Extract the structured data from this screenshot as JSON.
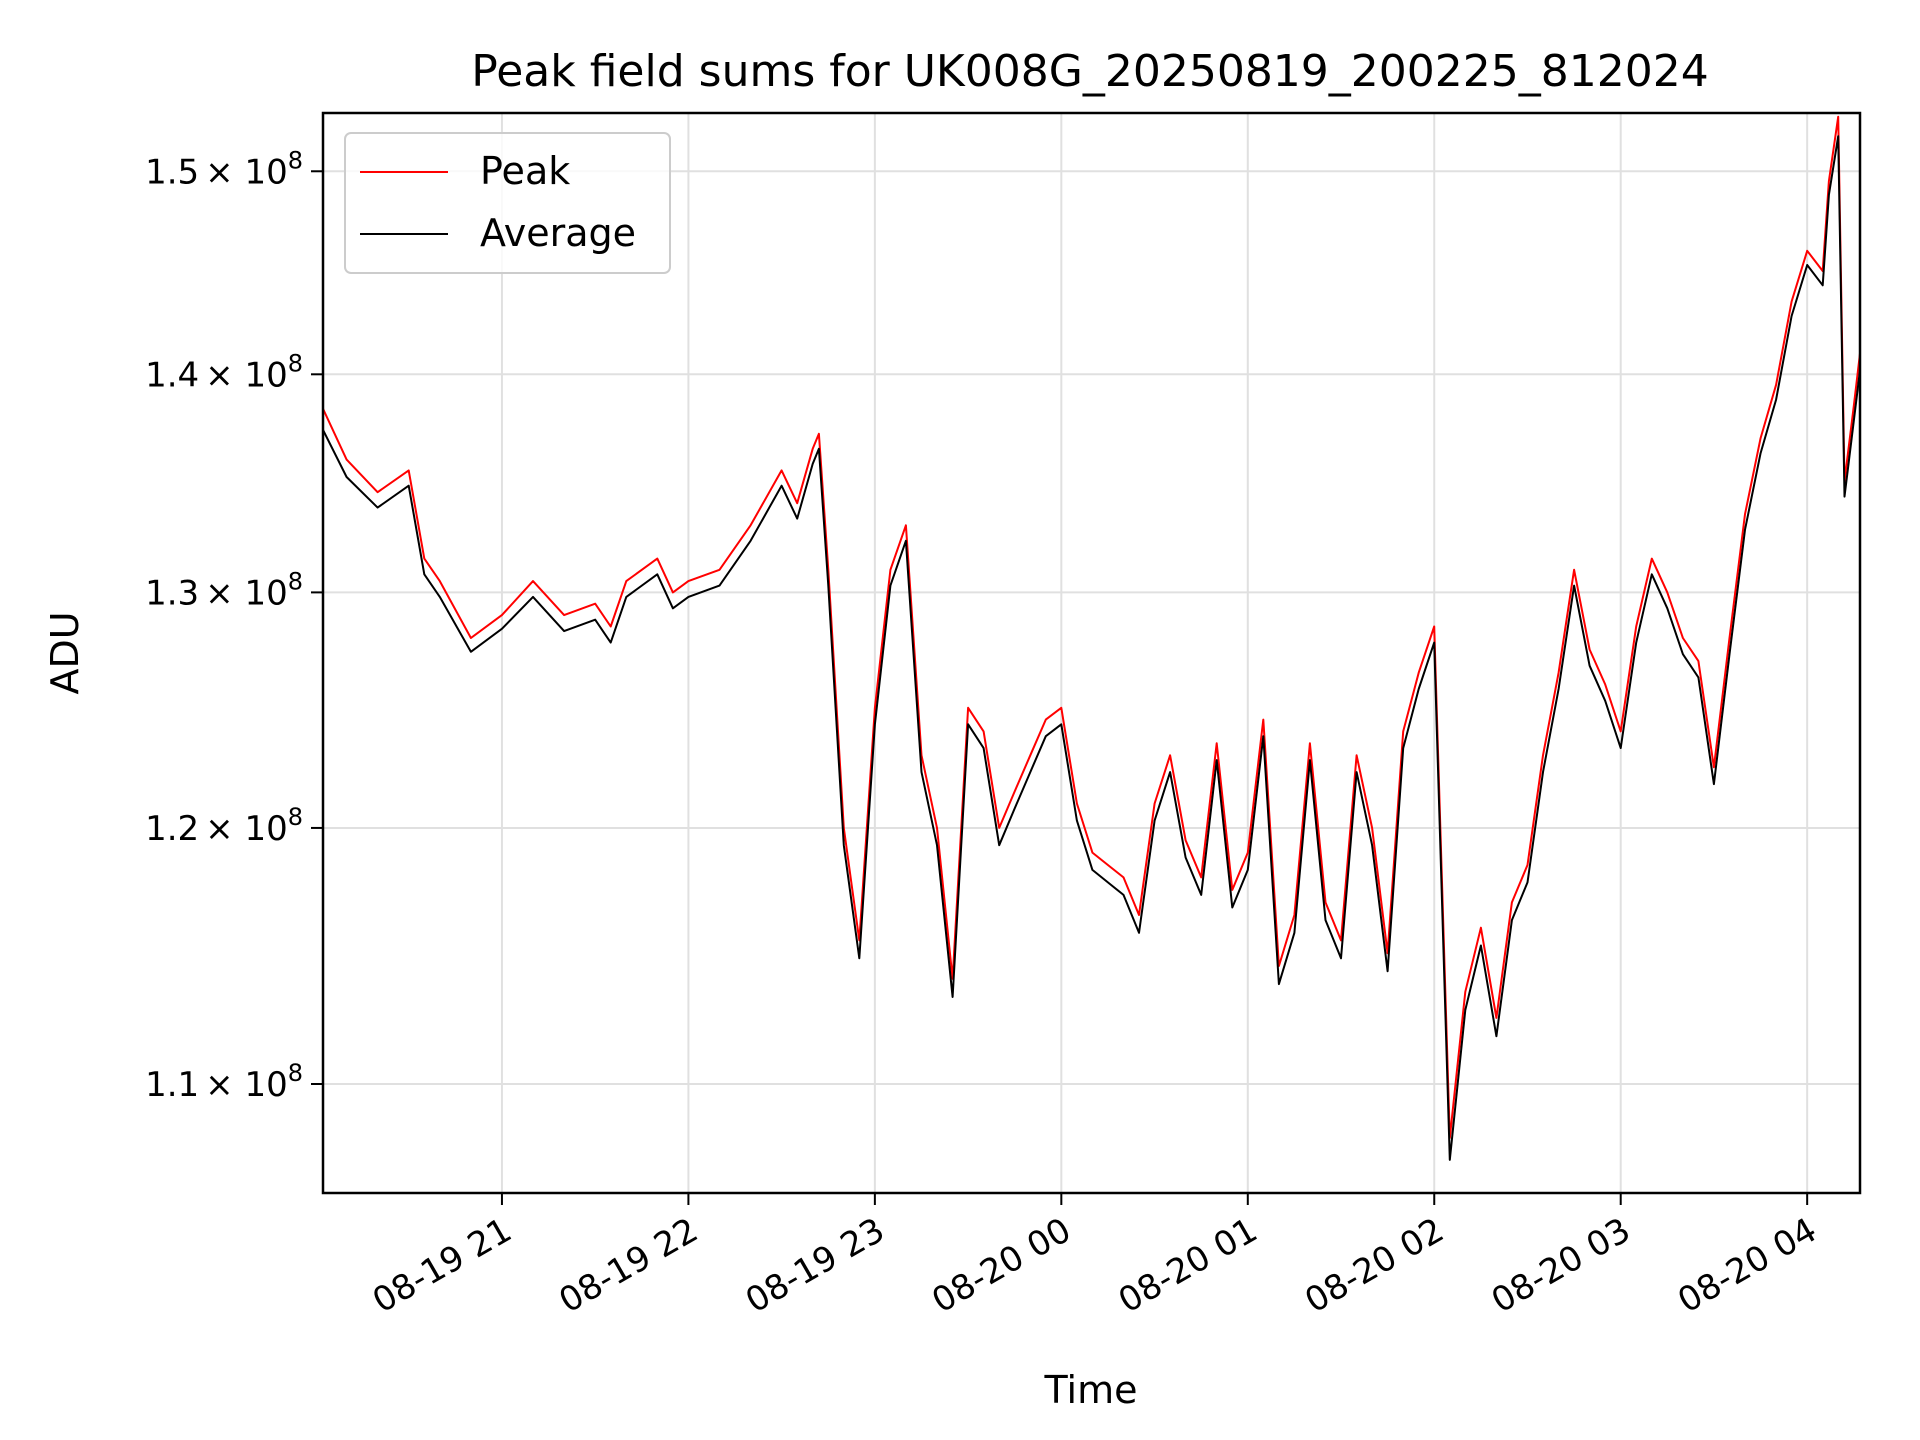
{
  "chart_data": {
    "type": "line",
    "title": "Peak field sums for UK008G_20250819_200225_812024",
    "xlabel": "Time",
    "ylabel": "ADU",
    "x_range": [
      "2025-08-19 20:02:25",
      "2025-08-20 04:17:00"
    ],
    "ylim": [
      106000000,
      153000000
    ],
    "y_scale": "log",
    "grid": true,
    "legend_placement": "upper-left",
    "x_ticks": [
      {
        "t": "2025-08-19 21:00",
        "label": "08-19 21"
      },
      {
        "t": "2025-08-19 22:00",
        "label": "08-19 22"
      },
      {
        "t": "2025-08-19 23:00",
        "label": "08-19 23"
      },
      {
        "t": "2025-08-20 00:00",
        "label": "08-20 00"
      },
      {
        "t": "2025-08-20 01:00",
        "label": "08-20 01"
      },
      {
        "t": "2025-08-20 02:00",
        "label": "08-20 02"
      },
      {
        "t": "2025-08-20 03:00",
        "label": "08-20 03"
      },
      {
        "t": "2025-08-20 04:00",
        "label": "08-20 04"
      }
    ],
    "y_ticks": [
      {
        "value": 110000000,
        "mantissa": "1.1",
        "base": "× 10",
        "exp": "8"
      },
      {
        "value": 120000000,
        "mantissa": "1.2",
        "base": "× 10",
        "exp": "8"
      },
      {
        "value": 130000000,
        "mantissa": "1.3",
        "base": "× 10",
        "exp": "8"
      },
      {
        "value": 140000000,
        "mantissa": "1.4",
        "base": "× 10",
        "exp": "8"
      },
      {
        "value": 150000000,
        "mantissa": "1.5",
        "base": "× 10",
        "exp": "8"
      }
    ],
    "series": [
      {
        "name": "Peak",
        "color": "#ff0000",
        "x": [
          "2025-08-19 20:02",
          "2025-08-19 20:10",
          "2025-08-19 20:20",
          "2025-08-19 20:30",
          "2025-08-19 20:35",
          "2025-08-19 20:40",
          "2025-08-19 20:50",
          "2025-08-19 21:00",
          "2025-08-19 21:10",
          "2025-08-19 21:20",
          "2025-08-19 21:30",
          "2025-08-19 21:35",
          "2025-08-19 21:40",
          "2025-08-19 21:50",
          "2025-08-19 21:55",
          "2025-08-19 22:00",
          "2025-08-19 22:10",
          "2025-08-19 22:20",
          "2025-08-19 22:30",
          "2025-08-19 22:35",
          "2025-08-19 22:40",
          "2025-08-19 22:42",
          "2025-08-19 22:45",
          "2025-08-19 22:50",
          "2025-08-19 22:55",
          "2025-08-19 23:00",
          "2025-08-19 23:05",
          "2025-08-19 23:10",
          "2025-08-19 23:15",
          "2025-08-19 23:20",
          "2025-08-19 23:25",
          "2025-08-19 23:30",
          "2025-08-19 23:35",
          "2025-08-19 23:40",
          "2025-08-19 23:45",
          "2025-08-19 23:50",
          "2025-08-19 23:55",
          "2025-08-20 00:00",
          "2025-08-20 00:05",
          "2025-08-20 00:10",
          "2025-08-20 00:15",
          "2025-08-20 00:20",
          "2025-08-20 00:25",
          "2025-08-20 00:30",
          "2025-08-20 00:35",
          "2025-08-20 00:40",
          "2025-08-20 00:45",
          "2025-08-20 00:50",
          "2025-08-20 00:55",
          "2025-08-20 01:00",
          "2025-08-20 01:05",
          "2025-08-20 01:10",
          "2025-08-20 01:15",
          "2025-08-20 01:20",
          "2025-08-20 01:25",
          "2025-08-20 01:30",
          "2025-08-20 01:35",
          "2025-08-20 01:40",
          "2025-08-20 01:45",
          "2025-08-20 01:50",
          "2025-08-20 01:55",
          "2025-08-20 02:00",
          "2025-08-20 02:05",
          "2025-08-20 02:10",
          "2025-08-20 02:15",
          "2025-08-20 02:20",
          "2025-08-20 02:25",
          "2025-08-20 02:30",
          "2025-08-20 02:35",
          "2025-08-20 02:40",
          "2025-08-20 02:45",
          "2025-08-20 02:50",
          "2025-08-20 02:55",
          "2025-08-20 03:00",
          "2025-08-20 03:05",
          "2025-08-20 03:10",
          "2025-08-20 03:15",
          "2025-08-20 03:20",
          "2025-08-20 03:25",
          "2025-08-20 03:30",
          "2025-08-20 03:35",
          "2025-08-20 03:40",
          "2025-08-20 03:45",
          "2025-08-20 03:50",
          "2025-08-20 03:55",
          "2025-08-20 04:00",
          "2025-08-20 04:05",
          "2025-08-20 04:07",
          "2025-08-20 04:10",
          "2025-08-20 04:12",
          "2025-08-20 04:15",
          "2025-08-20 04:17"
        ],
        "values": [
          138500000,
          136000000,
          134500000,
          135500000,
          131500000,
          130500000,
          128000000,
          129000000,
          130500000,
          129000000,
          129500000,
          128500000,
          130500000,
          131500000,
          130000000,
          130500000,
          131000000,
          133000000,
          135500000,
          134000000,
          136500000,
          137200000,
          131000000,
          120000000,
          115500000,
          125000000,
          131000000,
          133000000,
          123000000,
          120000000,
          114000000,
          125000000,
          124000000,
          120000000,
          121500000,
          123000000,
          124500000,
          125000000,
          121000000,
          119000000,
          118500000,
          118000000,
          116500000,
          121000000,
          123000000,
          119500000,
          118000000,
          123500000,
          117500000,
          119000000,
          124500000,
          114500000,
          116500000,
          123500000,
          117000000,
          115500000,
          123000000,
          120000000,
          115000000,
          124000000,
          126500000,
          128500000,
          108000000,
          113500000,
          116000000,
          112500000,
          117000000,
          118500000,
          123000000,
          126500000,
          131000000,
          127500000,
          126000000,
          124000000,
          128500000,
          131500000,
          130000000,
          128000000,
          127000000,
          122500000,
          128000000,
          133500000,
          137000000,
          139500000,
          143500000,
          146000000,
          145000000,
          149500000,
          152800000,
          135000000,
          138500000,
          141000000
        ]
      },
      {
        "name": "Average",
        "color": "#000000",
        "x": [
          "2025-08-19 20:02",
          "2025-08-19 20:10",
          "2025-08-19 20:20",
          "2025-08-19 20:30",
          "2025-08-19 20:35",
          "2025-08-19 20:40",
          "2025-08-19 20:50",
          "2025-08-19 21:00",
          "2025-08-19 21:10",
          "2025-08-19 21:20",
          "2025-08-19 21:30",
          "2025-08-19 21:35",
          "2025-08-19 21:40",
          "2025-08-19 21:50",
          "2025-08-19 21:55",
          "2025-08-19 22:00",
          "2025-08-19 22:10",
          "2025-08-19 22:20",
          "2025-08-19 22:30",
          "2025-08-19 22:35",
          "2025-08-19 22:40",
          "2025-08-19 22:42",
          "2025-08-19 22:45",
          "2025-08-19 22:50",
          "2025-08-19 22:55",
          "2025-08-19 23:00",
          "2025-08-19 23:05",
          "2025-08-19 23:10",
          "2025-08-19 23:15",
          "2025-08-19 23:20",
          "2025-08-19 23:25",
          "2025-08-19 23:30",
          "2025-08-19 23:35",
          "2025-08-19 23:40",
          "2025-08-19 23:45",
          "2025-08-19 23:50",
          "2025-08-19 23:55",
          "2025-08-20 00:00",
          "2025-08-20 00:05",
          "2025-08-20 00:10",
          "2025-08-20 00:15",
          "2025-08-20 00:20",
          "2025-08-20 00:25",
          "2025-08-20 00:30",
          "2025-08-20 00:35",
          "2025-08-20 00:40",
          "2025-08-20 00:45",
          "2025-08-20 00:50",
          "2025-08-20 00:55",
          "2025-08-20 01:00",
          "2025-08-20 01:05",
          "2025-08-20 01:10",
          "2025-08-20 01:15",
          "2025-08-20 01:20",
          "2025-08-20 01:25",
          "2025-08-20 01:30",
          "2025-08-20 01:35",
          "2025-08-20 01:40",
          "2025-08-20 01:45",
          "2025-08-20 01:50",
          "2025-08-20 01:55",
          "2025-08-20 02:00",
          "2025-08-20 02:05",
          "2025-08-20 02:10",
          "2025-08-20 02:15",
          "2025-08-20 02:20",
          "2025-08-20 02:25",
          "2025-08-20 02:30",
          "2025-08-20 02:35",
          "2025-08-20 02:40",
          "2025-08-20 02:45",
          "2025-08-20 02:50",
          "2025-08-20 02:55",
          "2025-08-20 03:00",
          "2025-08-20 03:05",
          "2025-08-20 03:10",
          "2025-08-20 03:15",
          "2025-08-20 03:20",
          "2025-08-20 03:25",
          "2025-08-20 03:30",
          "2025-08-20 03:35",
          "2025-08-20 03:40",
          "2025-08-20 03:45",
          "2025-08-20 03:50",
          "2025-08-20 03:55",
          "2025-08-20 04:00",
          "2025-08-20 04:05",
          "2025-08-20 04:07",
          "2025-08-20 04:10",
          "2025-08-20 04:12",
          "2025-08-20 04:15",
          "2025-08-20 04:17"
        ],
        "values": [
          137500000,
          135200000,
          133800000,
          134800000,
          130800000,
          129800000,
          127400000,
          128400000,
          129800000,
          128300000,
          128800000,
          127800000,
          129800000,
          130800000,
          129300000,
          129800000,
          130300000,
          132300000,
          134800000,
          133300000,
          135800000,
          136500000,
          130300000,
          119300000,
          114800000,
          124300000,
          130300000,
          132300000,
          122300000,
          119300000,
          113300000,
          124300000,
          123300000,
          119300000,
          120800000,
          122300000,
          123800000,
          124300000,
          120300000,
          118300000,
          117800000,
          117300000,
          115800000,
          120300000,
          122300000,
          118800000,
          117300000,
          122800000,
          116800000,
          118300000,
          123800000,
          113800000,
          115800000,
          122800000,
          116300000,
          114800000,
          122300000,
          119300000,
          114300000,
          123300000,
          125800000,
          127800000,
          107200000,
          112800000,
          115300000,
          111800000,
          116300000,
          117800000,
          122300000,
          125800000,
          130300000,
          126800000,
          125300000,
          123300000,
          127800000,
          130800000,
          129300000,
          127300000,
          126300000,
          121800000,
          127300000,
          132800000,
          136300000,
          138800000,
          142800000,
          145300000,
          144300000,
          148800000,
          151800000,
          134300000,
          137800000,
          140200000
        ]
      }
    ]
  }
}
